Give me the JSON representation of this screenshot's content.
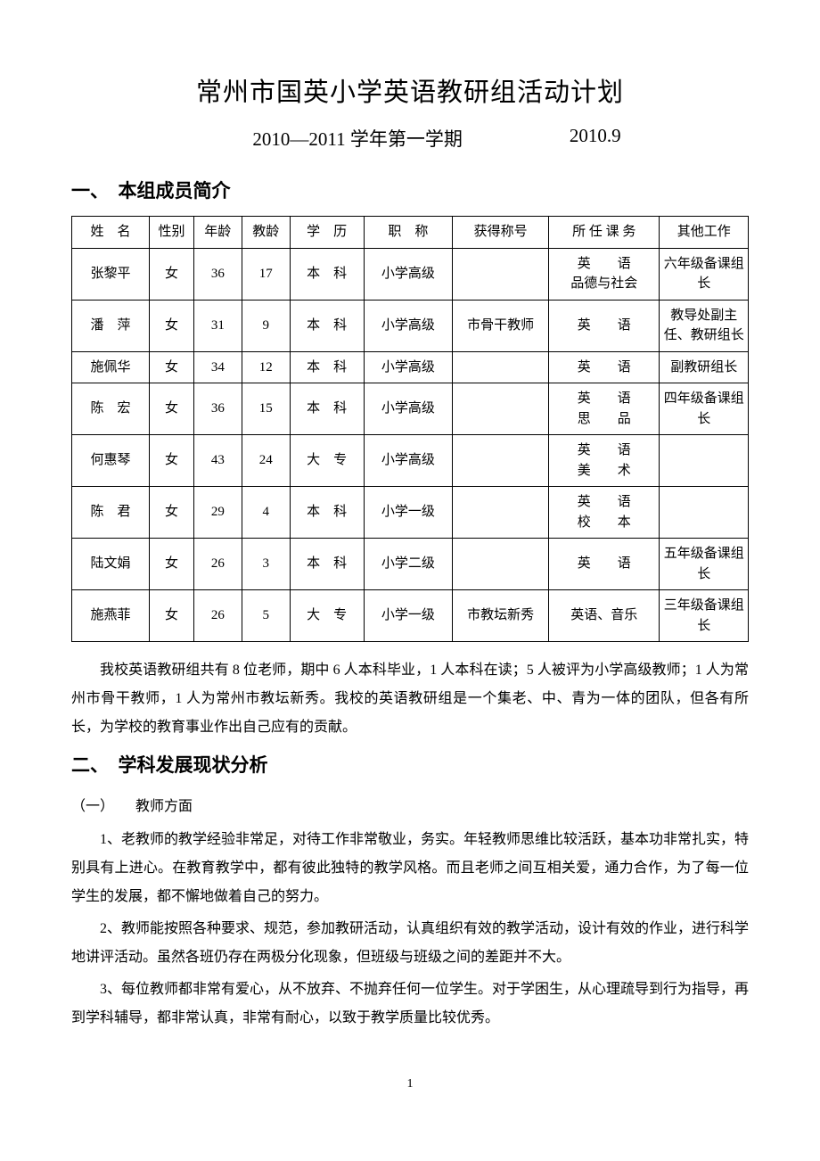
{
  "title": "常州市国英小学英语教研组活动计划",
  "subtitle_term": "2010—2011 学年第一学期",
  "subtitle_date": "2010.9",
  "section1_heading": "一、　本组成员简介",
  "table": {
    "headers": {
      "name": "姓　名",
      "gender": "性别",
      "age": "年龄",
      "teach_age": "教龄",
      "education": "学　历",
      "rank": "职　称",
      "honor": "获得称号",
      "course": "所 任 课 务",
      "other": "其他工作"
    },
    "rows": [
      {
        "name": "张黎平",
        "gender": "女",
        "age": "36",
        "teach_age": "17",
        "education": "本　科",
        "rank": "小学高级",
        "honor": "",
        "course": "英　　语\n品德与社会",
        "other": "六年级备课组长"
      },
      {
        "name": "潘　萍",
        "gender": "女",
        "age": "31",
        "teach_age": "9",
        "education": "本　科",
        "rank": "小学高级",
        "honor": "市骨干教师",
        "course": "英　　语",
        "other": "教导处副主任、教研组长"
      },
      {
        "name": "施佩华",
        "gender": "女",
        "age": "34",
        "teach_age": "12",
        "education": "本　科",
        "rank": "小学高级",
        "honor": "",
        "course": "英　　语",
        "other": "副教研组长"
      },
      {
        "name": "陈　宏",
        "gender": "女",
        "age": "36",
        "teach_age": "15",
        "education": "本　科",
        "rank": "小学高级",
        "honor": "",
        "course": "英　　语\n思　　品",
        "other": "四年级备课组长"
      },
      {
        "name": "何惠琴",
        "gender": "女",
        "age": "43",
        "teach_age": "24",
        "education": "大　专",
        "rank": "小学高级",
        "honor": "",
        "course": "英　　语\n美　　术",
        "other": ""
      },
      {
        "name": "陈　君",
        "gender": "女",
        "age": "29",
        "teach_age": "4",
        "education": "本　科",
        "rank": "小学一级",
        "honor": "",
        "course": "英　　语\n校　　本",
        "other": ""
      },
      {
        "name": "陆文娟",
        "gender": "女",
        "age": "26",
        "teach_age": "3",
        "education": "本　科",
        "rank": "小学二级",
        "honor": "",
        "course": "英　　语",
        "other": "五年级备课组长"
      },
      {
        "name": "施燕菲",
        "gender": "女",
        "age": "26",
        "teach_age": "5",
        "education": "大　专",
        "rank": "小学一级",
        "honor": "市教坛新秀",
        "course": "英语、音乐",
        "other": "三年级备课组长"
      }
    ]
  },
  "intro_para": "我校英语教研组共有 8 位老师，期中 6 人本科毕业，1 人本科在读；5 人被评为小学高级教师；1 人为常州市骨干教师，1 人为常州市教坛新秀。我校的英语教研组是一个集老、中、青为一体的团队，但各有所长，为学校的教育事业作出自己应有的贡献。",
  "section2_heading": "二、　学科发展现状分析",
  "sub1_heading": "（一）　　教师方面",
  "para1": "1、老教师的教学经验非常足，对待工作非常敬业，务实。年轻教师思维比较活跃，基本功非常扎实，特别具有上进心。在教育教学中，都有彼此独特的教学风格。而且老师之间互相关爱，通力合作，为了每一位学生的发展，都不懈地做着自己的努力。",
  "para2": "2、教师能按照各种要求、规范，参加教研活动，认真组织有效的教学活动，设计有效的作业，进行科学地讲评活动。虽然各班仍存在两极分化现象，但班级与班级之间的差距并不大。",
  "para3": "3、每位教师都非常有爱心，从不放弃、不抛弃任何一位学生。对于学困生，从心理疏导到行为指导，再到学科辅导，都非常认真，非常有耐心，以致于教学质量比较优秀。",
  "page_number": "1",
  "colors": {
    "text": "#000000",
    "background": "#ffffff",
    "border": "#000000"
  },
  "typography": {
    "title_fontsize": 29,
    "subtitle_fontsize": 21,
    "heading_fontsize": 21,
    "body_fontsize": 16,
    "table_fontsize": 15,
    "font_family": "SimSun"
  }
}
